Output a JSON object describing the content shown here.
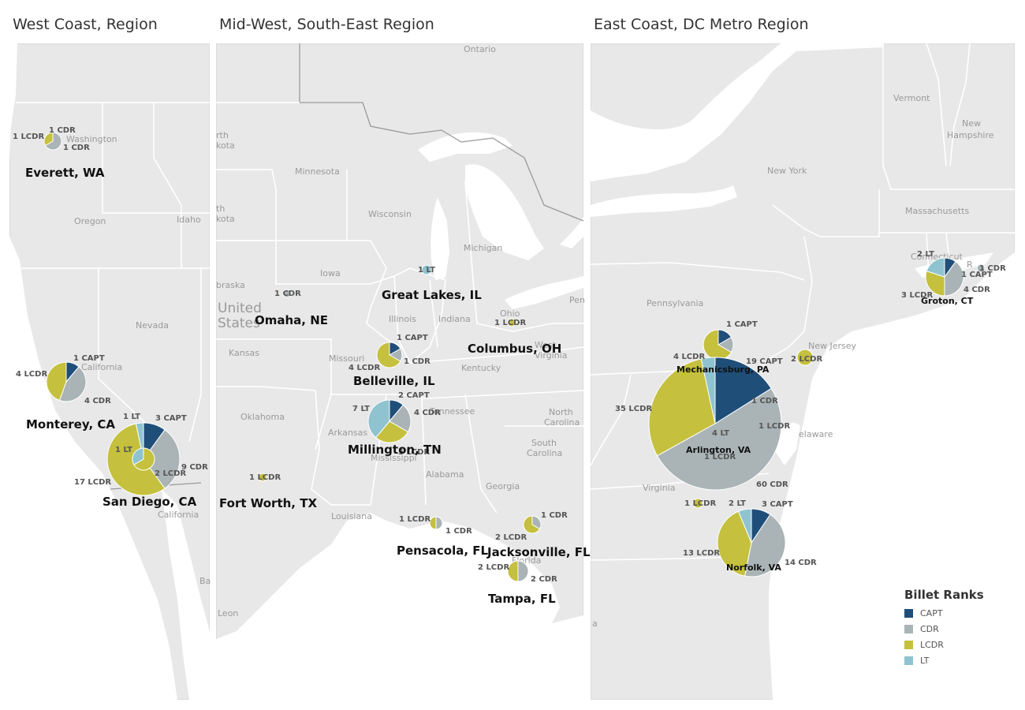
{
  "panels": [
    {
      "title": "West Coast, Region"
    },
    {
      "title": "Mid-West, South-East Region"
    },
    {
      "title": "East Coast, DC Metro Region"
    }
  ],
  "colors": {
    "CAPT": "#1f4e79",
    "CDR": "#aab4b6",
    "LCDR": "#c5c03e",
    "LT": "#8fc3cf",
    "land": "#e8e8e8",
    "water": "#ffffff"
  },
  "geo_labels": {
    "washington": "Washington",
    "oregon": "Oregon",
    "idaho": "Idaho",
    "nevada": "Nevada",
    "california": "California",
    "baja_california": "California",
    "ba": "Ba",
    "ontario": "Ontario",
    "minnesota": "Minnesota",
    "wisconsin": "Wisconsin",
    "michigan": "Michigan",
    "iowa": "Iowa",
    "illinois": "Illinois",
    "indiana": "Indiana",
    "ohio": "Ohio",
    "penn_cut": "Pen",
    "nebraska_cut": "braska",
    "north_cut1": "rth",
    "north_cut2": "kota",
    "south_cut1": "th",
    "south_cut2": "kota",
    "kansas": "Kansas",
    "missouri": "Missouri",
    "kentucky": "Kentucky",
    "west_virginia_1": "West",
    "west_virginia_2": "Virginia",
    "tennessee": "Tennessee",
    "oklahoma": "Oklahoma",
    "arkansas": "Arkansas",
    "mississippi": "Mississippi",
    "north_carolina_1": "North",
    "north_carolina_2": "Carolina",
    "south_carolina_1": "South",
    "south_carolina_2": "Carolina",
    "alabama": "Alabama",
    "georgia": "Georgia",
    "louisiana": "Louisiana",
    "florida": "Florida",
    "leon": "Leon",
    "united": "United",
    "states": "States",
    "vermont": "Vermont",
    "new_hampshire_1": "New",
    "new_hampshire_2": "Hampshire",
    "new_york": "New York",
    "massachusetts": "Massachusetts",
    "connecticut": "Connecticut",
    "rhode_cut": "R",
    "pennsylvania": "Pennsylvania",
    "new_jersey": "New Jersey",
    "delaware": "elaware",
    "virginia": "Virginia",
    "a_cut": "a"
  },
  "legend": {
    "title": "Billet Ranks",
    "items": [
      "CAPT",
      "CDR",
      "LCDR",
      "LT"
    ]
  },
  "map_data": {
    "measure": "Number of billets by rank",
    "locations": [
      {
        "name": "Everett, WA",
        "CAPT": 0,
        "CDR": 2,
        "LCDR": 1,
        "LT": 0
      },
      {
        "name": "Monterey, CA",
        "CAPT": 1,
        "CDR": 4,
        "LCDR": 4,
        "LT": 0
      },
      {
        "name": "San Diego, CA",
        "CAPT": 3,
        "CDR": 9,
        "LCDR": 17,
        "LT": 1
      },
      {
        "name": "San Diego, CA (inner)",
        "CAPT": 0,
        "CDR": 0,
        "LCDR": 2,
        "LT": 1
      },
      {
        "name": "Omaha, NE",
        "CAPT": 0,
        "CDR": 1,
        "LCDR": 0,
        "LT": 0
      },
      {
        "name": "Great Lakes, IL",
        "CAPT": 0,
        "CDR": 0,
        "LCDR": 0,
        "LT": 1
      },
      {
        "name": "Columbus, OH",
        "CAPT": 0,
        "CDR": 0,
        "LCDR": 1,
        "LT": 0
      },
      {
        "name": "Belleville, IL",
        "CAPT": 1,
        "CDR": 1,
        "LCDR": 4,
        "LT": 0
      },
      {
        "name": "Millington, TN",
        "CAPT": 2,
        "CDR": 4,
        "LCDR": 5,
        "LT": 7
      },
      {
        "name": "Fort Worth, TX",
        "CAPT": 0,
        "CDR": 0,
        "LCDR": 1,
        "LT": 0
      },
      {
        "name": "Pensacola, FL",
        "CAPT": 0,
        "CDR": 1,
        "LCDR": 1,
        "LT": 0
      },
      {
        "name": "Jacksonville, FL",
        "CAPT": 0,
        "CDR": 1,
        "LCDR": 2,
        "LT": 0
      },
      {
        "name": "Tampa, FL",
        "CAPT": 0,
        "CDR": 2,
        "LCDR": 2,
        "LT": 0
      },
      {
        "name": "Groton, CT",
        "CAPT": 1,
        "CDR": 4,
        "LCDR": 3,
        "LT": 2
      },
      {
        "name": "Rhode Island",
        "CAPT": 0,
        "CDR": 1,
        "LCDR": 0,
        "LT": 0
      },
      {
        "name": "Mechanicsburg, PA",
        "CAPT": 1,
        "CDR": 1,
        "LCDR": 4,
        "LT": 0
      },
      {
        "name": "New Jersey",
        "CAPT": 0,
        "CDR": 0,
        "LCDR": 2,
        "LT": 0
      },
      {
        "name": "Arlington, VA",
        "CAPT": 19,
        "CDR": 60,
        "LCDR": 35,
        "LT": 4
      },
      {
        "name": "Virginia",
        "CAPT": 0,
        "CDR": 0,
        "LCDR": 1,
        "LT": 0
      },
      {
        "name": "Norfolk, VA",
        "CAPT": 3,
        "CDR": 14,
        "LCDR": 13,
        "LT": 2
      }
    ]
  },
  "city_labels": {
    "everett": "Everett, WA",
    "monterey": "Monterey, CA",
    "san_diego": "San Diego, CA",
    "omaha": "Omaha, NE",
    "great_lakes": "Great Lakes, IL",
    "columbus": "Columbus, OH",
    "belleville": "Belleville, IL",
    "millington": "Millington, TN",
    "fort_worth": "Fort Worth, TX",
    "pensacola": "Pensacola, FL",
    "jacksonville": "Jacksonville, FL",
    "tampa": "Tampa, FL",
    "groton": "Groton, CT",
    "mechanicsburg": "Mechanicsburg, PA",
    "arlington": "Arlington, VA",
    "norfolk": "Norfolk, VA"
  },
  "slice_labels": {
    "ev1": "1 LCDR",
    "ev2": "1 CDR",
    "ev3": "1 CDR",
    "mo1": "1 CAPT",
    "mo2": "4 LCDR",
    "mo3": "4 CDR",
    "sd1": "1 LT",
    "sd2": "3 CAPT",
    "sd3": "1 LT",
    "sd4": "9 CDR",
    "sd5": "2 LCDR",
    "sd6": "17 LCDR",
    "om1": "1 CDR",
    "gl1": "1 LT",
    "co1": "1 LCDR",
    "be1": "1 CAPT",
    "be2": "1 CDR",
    "be3": "4 LCDR",
    "mi1": "2 CAPT",
    "mi2": "7 LT",
    "mi3": "4 CDR",
    "mi4": "5 LCDR",
    "fw1": "1 LCDR",
    "pe1": "1 LCDR",
    "pe2": "1 CDR",
    "ja1": "1 CDR",
    "ja2": "2 LCDR",
    "ta1": "2 LCDR",
    "ta2": "2 CDR",
    "gr1": "2 LT",
    "gr2": "1 CAPT",
    "gr3": "1 CDR",
    "gr4": "4 CDR",
    "gr5": "3 LCDR",
    "me1": "1 CAPT",
    "me2": "4 LCDR",
    "nj1": "2 LCDR",
    "ar1": "19 CAPT",
    "ar2": "35 LCDR",
    "ar3": "1 CDR",
    "ar4": "1 LCDR",
    "ar5": "4 LT",
    "ar6": "1 LCDR",
    "ar7": "60 CDR",
    "va1": "1 LCDR",
    "no1": "2 LT",
    "no2": "3 CAPT",
    "no3": "13 LCDR",
    "no4": "14 CDR"
  }
}
